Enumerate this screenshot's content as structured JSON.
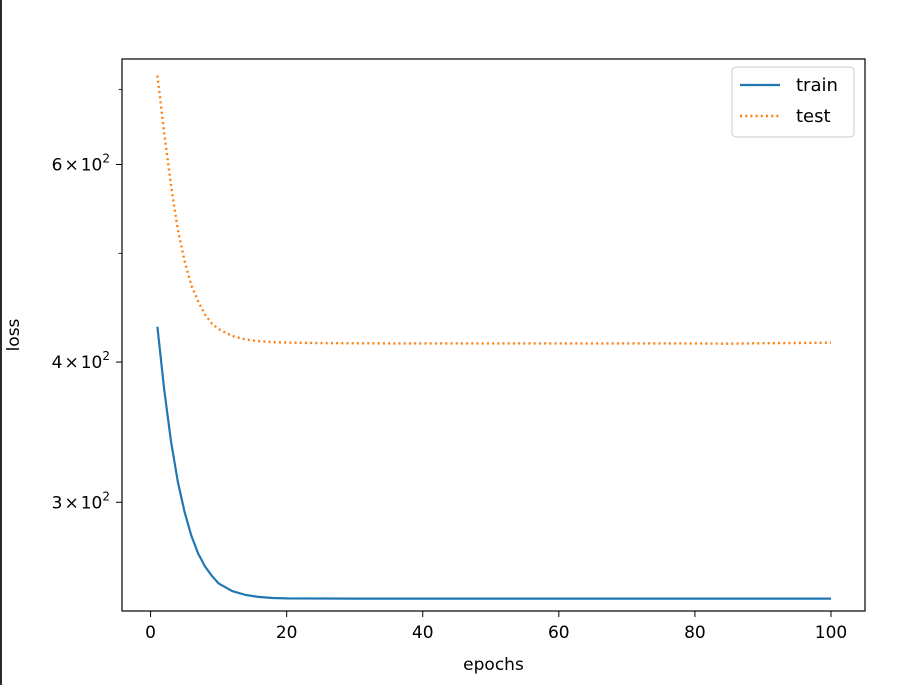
{
  "chart_data": {
    "type": "line",
    "title": "",
    "xlabel": "epochs",
    "ylabel": "loss",
    "yscale": "log",
    "xlim": [
      -4.2,
      105
    ],
    "ylim": [
      240,
      745
    ],
    "grid": false,
    "legend_position": "top-right",
    "x_ticks": [
      {
        "value": 0,
        "label": "0"
      },
      {
        "value": 20,
        "label": "20"
      },
      {
        "value": 40,
        "label": "40"
      },
      {
        "value": 60,
        "label": "60"
      },
      {
        "value": 80,
        "label": "80"
      },
      {
        "value": 100,
        "label": "100"
      }
    ],
    "y_ticks": [
      {
        "value": 300,
        "base": "3",
        "exp": "2"
      },
      {
        "value": 400,
        "base": "4",
        "exp": "2"
      },
      {
        "value": 600,
        "base": "6",
        "exp": "2"
      }
    ],
    "y_minor_ticks": [
      500,
      700
    ],
    "series": [
      {
        "name": "train",
        "color": "#1f77b4",
        "style": "solid",
        "x": [
          1,
          2,
          3,
          4,
          5,
          6,
          7,
          8,
          9,
          10,
          12,
          14,
          16,
          18,
          20,
          30,
          40,
          50,
          60,
          70,
          80,
          90,
          100
        ],
        "y": [
          430,
          378,
          340,
          313,
          294,
          280,
          270,
          263,
          258,
          254,
          250,
          248,
          247,
          246.5,
          246.3,
          246.2,
          246.2,
          246.2,
          246.2,
          246.2,
          246.2,
          246.2,
          246.2
        ]
      },
      {
        "name": "test",
        "color": "#ff7f0e",
        "style": "dotted",
        "x": [
          1,
          2,
          3,
          4,
          5,
          6,
          7,
          8,
          9,
          10,
          12,
          14,
          16,
          18,
          20,
          25,
          30,
          35,
          40,
          50,
          60,
          70,
          80,
          85,
          90,
          95,
          100
        ],
        "y": [
          720,
          640,
          575,
          525,
          492,
          468,
          453,
          441,
          433,
          428,
          422,
          419,
          417.5,
          416.7,
          416.3,
          415.9,
          415.7,
          415.6,
          415.6,
          415.6,
          415.6,
          415.6,
          415.6,
          415.4,
          415.8,
          416.0,
          416.2
        ]
      }
    ]
  }
}
